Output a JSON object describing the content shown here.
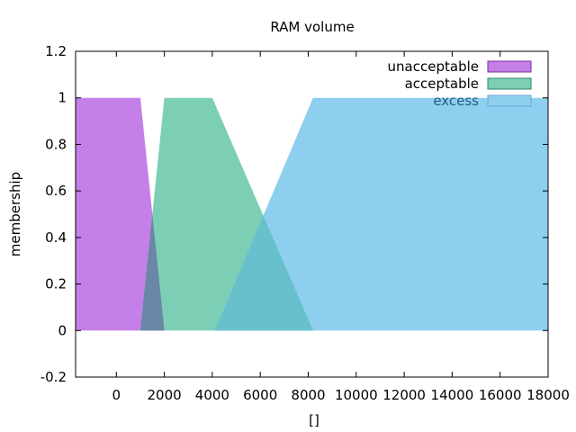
{
  "chart_data": {
    "type": "area",
    "title": "RAM volume",
    "xlabel": "[]",
    "ylabel": "membership",
    "xlim": [
      -1700,
      18000
    ],
    "ylim": [
      -0.2,
      1.2
    ],
    "xticks": [
      0,
      2000,
      4000,
      6000,
      8000,
      10000,
      12000,
      14000,
      16000,
      18000
    ],
    "yticks": [
      -0.2,
      0,
      0.2,
      0.4,
      0.6,
      0.8,
      1,
      1.2
    ],
    "legend_position": "top-right",
    "series": [
      {
        "name": "unacceptable",
        "color": "#c57fe8",
        "legend_text_color": "#000000",
        "points": [
          [
            -1700,
            0
          ],
          [
            -1700,
            1
          ],
          [
            1000,
            1
          ],
          [
            2000,
            0
          ]
        ]
      },
      {
        "name": "acceptable",
        "color": "#7ccfb5",
        "legend_text_color": "#000000",
        "points": [
          [
            1000,
            0
          ],
          [
            2000,
            1
          ],
          [
            4000,
            1
          ],
          [
            8200,
            0
          ]
        ]
      },
      {
        "name": "excess",
        "color": "#8ecfef",
        "legend_text_color": "#2a5a7a",
        "points": [
          [
            4100,
            0
          ],
          [
            8200,
            1
          ],
          [
            18000,
            1
          ],
          [
            18000,
            0
          ]
        ]
      }
    ]
  }
}
